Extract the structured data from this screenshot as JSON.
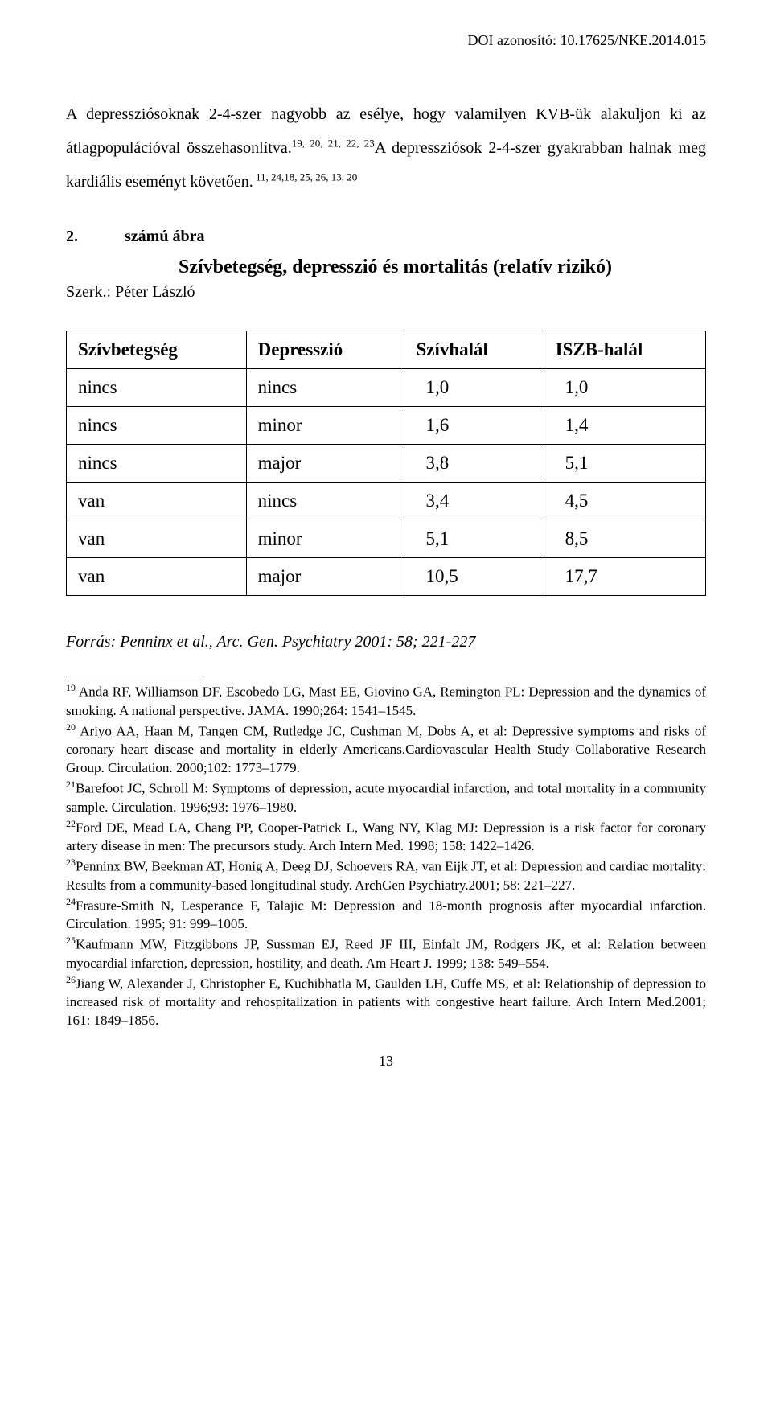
{
  "doi": "DOI azonosító: 10.17625/NKE.2014.015",
  "paragraph1_part1": "A depressziósoknak 2-4-szer nagyobb az esélye, hogy valamilyen KVB-ük alakuljon ki az átlagpopulációval összehasonlítva.",
  "paragraph1_sup1": "19, 20, 21, 22, 23",
  "paragraph1_part2": "A depressziósok 2-4-szer gyakrabban halnak meg kardiális eseményt követően.",
  "paragraph1_sup2": " 11, 24,18, 25, 26, 13, 20",
  "figure_number": "2.",
  "figure_label": "számú ábra",
  "figure_title": "Szívbetegség, depresszió és mortalitás (relatív rizikó)",
  "editor": "Szerk.: Péter László",
  "table": {
    "columns": [
      "Szívbetegség",
      "Depresszió",
      "Szívhalál",
      "ISZB-halál"
    ],
    "rows": [
      [
        "nincs",
        "nincs",
        "1,0",
        "1,0"
      ],
      [
        "nincs",
        "minor",
        "1,6",
        "1,4"
      ],
      [
        "nincs",
        "major",
        "3,8",
        "5,1"
      ],
      [
        "van",
        "nincs",
        "3,4",
        "4,5"
      ],
      [
        "van",
        "minor",
        "5,1",
        "8,5"
      ],
      [
        "van",
        "major",
        "10,5",
        "17,7"
      ]
    ]
  },
  "source": "Forrás: Penninx et al., Arc. Gen. Psychiatry 2001: 58; 221-227",
  "footnotes": [
    {
      "n": "19",
      "text": " Anda RF, Williamson DF, Escobedo LG, Mast EE, Giovino GA, Remington PL: Depression and the dynamics of smoking. A national perspective. JAMA. 1990;264: 1541–1545."
    },
    {
      "n": "20",
      "text": " Ariyo AA, Haan M, Tangen CM, Rutledge JC, Cushman M, Dobs A, et al: Depressive symptoms and risks of coronary heart disease and mortality in elderly Americans.Cardiovascular Health Study Collaborative Research Group. Circulation. 2000;102: 1773–1779."
    },
    {
      "n": "21",
      "text": "Barefoot JC, Schroll M: Symptoms of depression, acute myocardial infarction, and total mortality in a community sample. Circulation. 1996;93: 1976–1980."
    },
    {
      "n": "22",
      "text": "Ford DE, Mead LA, Chang PP, Cooper-Patrick L, Wang NY, Klag MJ: Depression is a risk factor for coronary artery disease in men: The precursors study. Arch Intern Med. 1998; 158: 1422–1426."
    },
    {
      "n": "23",
      "text": "Penninx BW, Beekman AT, Honig A, Deeg DJ, Schoevers RA, van Eijk JT, et al: Depression and cardiac mortality: Results from a community-based longitudinal study. ArchGen Psychiatry.2001; 58: 221–227."
    },
    {
      "n": "24",
      "text": "Frasure-Smith N, Lesperance F, Talajic M: Depression and 18-month prognosis after myocardial infarction. Circulation. 1995; 91: 999–1005."
    },
    {
      "n": "25",
      "text": "Kaufmann MW, Fitzgibbons JP, Sussman EJ, Reed JF III, Einfalt JM, Rodgers JK, et al: Relation between myocardial infarction, depression, hostility, and death. Am Heart J. 1999; 138: 549–554."
    },
    {
      "n": "26",
      "text": "Jiang W, Alexander J, Christopher E, Kuchibhatla M, Gaulden LH, Cuffe MS, et al: Relationship of depression to increased risk of mortality and rehospitalization in patients with congestive heart failure. Arch Intern Med.2001; 161: 1849–1856."
    }
  ],
  "page_number": "13"
}
